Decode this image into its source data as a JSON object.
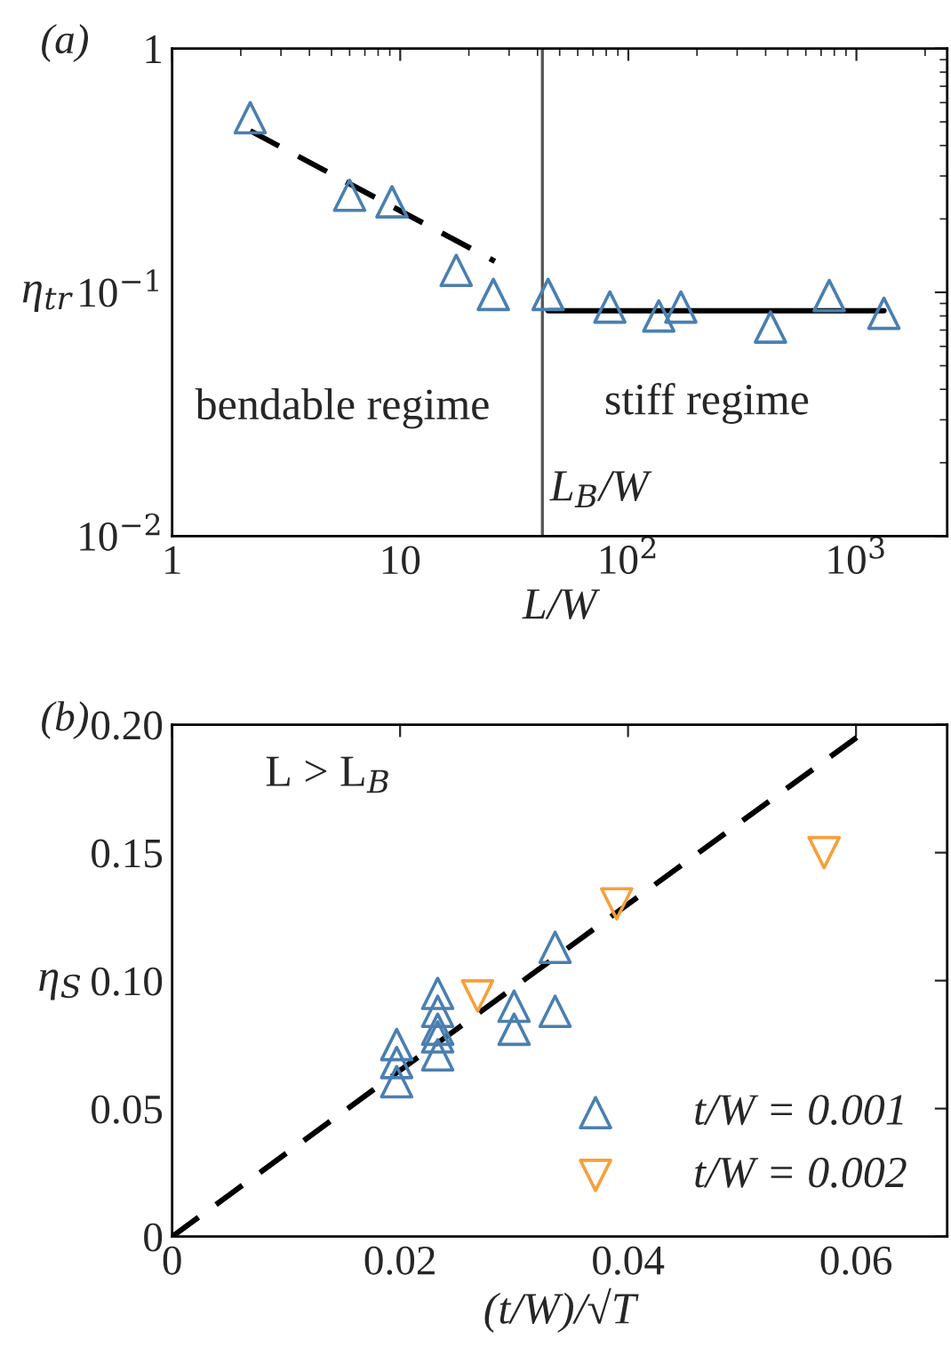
{
  "chart_data": [
    {
      "type": "scatter",
      "title": "(a)",
      "xlabel": "L/W",
      "ylabel": "η$_{tr}$",
      "log": "xy",
      "xlim": [
        1,
        2500
      ],
      "ylim": [
        0.01,
        1
      ],
      "xticks": [
        {
          "value": 1,
          "label": "1"
        },
        {
          "value": 10,
          "label": "10"
        },
        {
          "value": 100,
          "label": "10$^{2}$"
        },
        {
          "value": 1000,
          "label": "10$^{3}$"
        }
      ],
      "yticks": [
        {
          "value": 0.01,
          "label": "10$^{−2}$"
        },
        {
          "value": 0.1,
          "label": "10$^{−1}$"
        },
        {
          "value": 1,
          "label": "1"
        }
      ],
      "marker": "triangle",
      "legend": false,
      "grid": false,
      "series": [
        {
          "color": "#4a7fb0",
          "x": [
            2.2,
            6.0,
            9.2,
            17.6,
            25.6,
            44.5,
            83,
            136,
            170,
            420,
            760,
            1320
          ],
          "values": [
            0.52,
            0.25,
            0.235,
            0.123,
            0.098,
            0.098,
            0.087,
            0.08,
            0.087,
            0.072,
            0.097,
            0.082
          ]
        },
        {
          "type": "line",
          "color": "#000000",
          "line_style": "dashed",
          "marker": "none",
          "x": [
            2.2,
            26
          ],
          "values": [
            0.46,
            0.134
          ]
        },
        {
          "type": "line",
          "color": "#000000",
          "line_style": "solid",
          "marker": "none",
          "x": [
            44.5,
            1320
          ],
          "values": [
            0.084,
            0.084
          ]
        }
      ],
      "ref_lines": [
        {
          "axis": "x",
          "value": 42,
          "label": "L$_{B}$/W",
          "color": "#555555"
        }
      ],
      "annotations": [
        "bendable regime",
        "stiff regime"
      ]
    },
    {
      "type": "scatter",
      "title": "(b)",
      "xlabel": "(t/W)/√T",
      "ylabel": "η$_{S}$",
      "xlim": [
        0,
        0.068
      ],
      "ylim": [
        0,
        0.2
      ],
      "xticks": [
        0,
        {
          "value": 0.02,
          "label": "0.02"
        },
        {
          "value": 0.04,
          "label": "0.04"
        },
        {
          "value": 0.06,
          "label": "0.06"
        }
      ],
      "yticks": [
        0,
        {
          "value": 0.05,
          "label": "0.05"
        },
        {
          "value": 0.1,
          "label": "0.10"
        },
        {
          "value": 0.15,
          "label": "0.15"
        },
        {
          "value": 0.2,
          "label": "0.20"
        }
      ],
      "legend": "bottom right",
      "grid": false,
      "series": [
        {
          "name": "t/W = 0.001",
          "color": "#4a7fb0",
          "marker": "triangle",
          "x": [
            0.0197,
            0.0197,
            0.0197,
            0.0233,
            0.0233,
            0.0233,
            0.0233,
            0.0233,
            0.03,
            0.03,
            0.0336,
            0.0336
          ],
          "values": [
            0.075,
            0.068,
            0.0605,
            0.095,
            0.088,
            0.081,
            0.078,
            0.071,
            0.09,
            0.081,
            0.113,
            0.088
          ]
        },
        {
          "name": "t/W = 0.002",
          "color": "#f5a03c",
          "marker": "triangle_down",
          "x": [
            0.0268,
            0.039,
            0.0572
          ],
          "values": [
            0.094,
            0.13,
            0.15
          ]
        },
        {
          "type": "line",
          "color": "#000000",
          "line_style": "dashed",
          "marker": "none",
          "x": [
            0,
            0.0616
          ],
          "values": [
            0,
            0.2
          ]
        }
      ],
      "annotations": [
        "L > L$_{B}$"
      ]
    }
  ]
}
